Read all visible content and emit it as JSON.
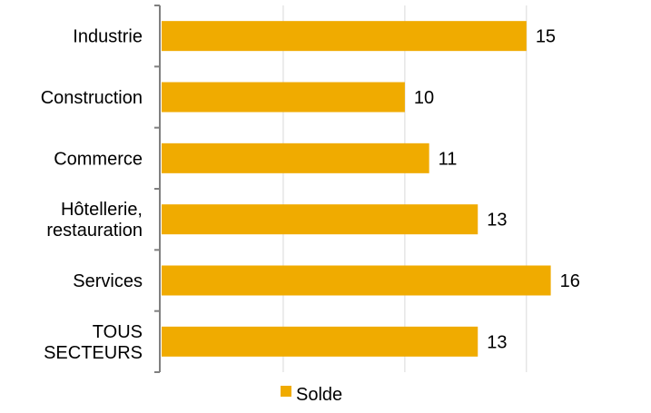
{
  "chart_data": {
    "type": "bar",
    "orientation": "horizontal",
    "categories": [
      [
        "Industrie"
      ],
      [
        "Construction"
      ],
      [
        "Commerce"
      ],
      [
        "Hôtellerie,",
        "restauration"
      ],
      [
        "Services"
      ],
      [
        "TOUS",
        "SECTEURS"
      ]
    ],
    "series": [
      {
        "name": "Solde",
        "values": [
          15,
          10,
          11,
          13,
          16,
          13
        ],
        "color": "#F0AB00"
      }
    ],
    "xlim": [
      0,
      16.5
    ],
    "x_gridlines": [
      5,
      10,
      15
    ],
    "grid": true,
    "legend": "bottom-center",
    "data_labels": true
  }
}
